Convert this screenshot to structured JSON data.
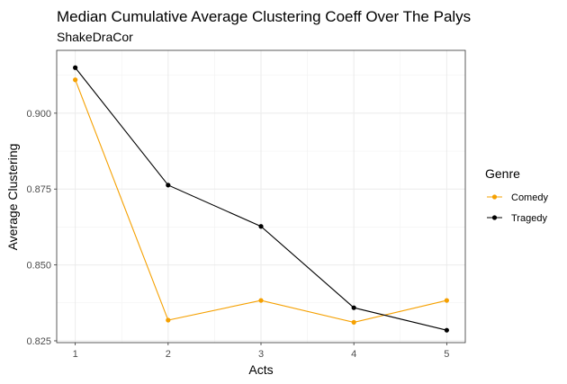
{
  "chart_data": {
    "type": "line",
    "title": "Median Cumulative Average Clustering Coeff Over The Palys",
    "subtitle": "ShakeDraCor",
    "xlabel": "Acts",
    "ylabel": "Average Clustering",
    "x": [
      1,
      2,
      3,
      4,
      5
    ],
    "x_ticks": [
      "1",
      "2",
      "3",
      "4",
      "5"
    ],
    "xlim": [
      0.8,
      5.2
    ],
    "y_ticks": [
      0.825,
      0.85,
      0.875,
      0.9
    ],
    "y_tick_labels": [
      "0.825",
      "0.850",
      "0.875",
      "0.900"
    ],
    "ylim": [
      0.8244,
      0.9207
    ],
    "grid": true,
    "legend": {
      "title": "Genre",
      "placement": "right"
    },
    "series": [
      {
        "name": "Comedy",
        "color": "#f5a000",
        "values": [
          0.911,
          0.8318,
          0.8383,
          0.8311,
          0.8383
        ]
      },
      {
        "name": "Tragedy",
        "color": "#000000",
        "values": [
          0.915,
          0.8763,
          0.8627,
          0.8359,
          0.8285
        ]
      }
    ]
  }
}
